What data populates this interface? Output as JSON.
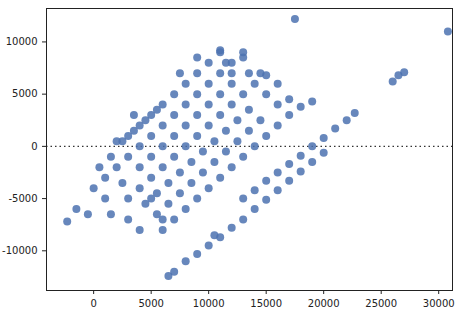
{
  "chart_data": {
    "type": "scatter",
    "color": "#4c72b0",
    "marker": "circle",
    "x": [
      2500,
      3000,
      3500,
      4000,
      4500,
      5000,
      5500,
      6000,
      7000,
      8000,
      9000,
      10000,
      11000,
      0,
      1000,
      2000,
      3000,
      4000,
      5000,
      6000,
      7000,
      8000,
      9000,
      10000,
      11000,
      12000,
      13000,
      -500,
      1000,
      2500,
      4000,
      5000,
      6000,
      7000,
      8000,
      9000,
      10000,
      11000,
      12000,
      13500,
      1500,
      3000,
      4000,
      5000,
      6000,
      7000,
      8000,
      9000,
      10000,
      11000,
      12000,
      13000,
      14000,
      3000,
      4500,
      5500,
      6500,
      7500,
      8500,
      9500,
      10500,
      11500,
      12500,
      13500,
      15000,
      16000,
      4000,
      5500,
      6500,
      7500,
      8500,
      9500,
      10500,
      11500,
      12500,
      13500,
      14500,
      16000,
      17000,
      6000,
      7000,
      8000,
      9000,
      10000,
      11000,
      12000,
      13000,
      14000,
      15000,
      16000,
      17000,
      18000,
      19000,
      13000,
      14000,
      15000,
      16000,
      17000,
      18000,
      19000,
      20000,
      21000,
      22000,
      22700,
      6500,
      7000,
      8000,
      9000,
      10000,
      11000,
      12000,
      13000,
      14000,
      15000,
      16000,
      17000,
      18000,
      19000,
      20000,
      -2300,
      -1500,
      500,
      1500,
      2000,
      3500,
      5000,
      6000,
      7500,
      9000,
      10500,
      11000,
      11500,
      12000,
      13000,
      14500,
      15000,
      17500,
      26000,
      26500,
      27000,
      30800
    ],
    "values": [
      500,
      1000,
      1500,
      2000,
      2500,
      3000,
      3500,
      4000,
      5000,
      6000,
      7000,
      8000,
      9000,
      -4000,
      -3000,
      -2000,
      -1000,
      0,
      1000,
      2000,
      3000,
      4000,
      5000,
      6000,
      7000,
      8000,
      8500,
      -6500,
      -5000,
      -3500,
      -2000,
      -1000,
      0,
      1000,
      2000,
      3000,
      4000,
      5000,
      6000,
      7000,
      -6500,
      -5000,
      -4000,
      -3000,
      -2000,
      -1000,
      0,
      1000,
      2000,
      3000,
      4000,
      5000,
      6000,
      -7000,
      -5500,
      -4500,
      -3500,
      -2500,
      -1500,
      -500,
      500,
      1500,
      2500,
      3500,
      5000,
      6000,
      -8000,
      -6500,
      -5500,
      -4500,
      -3500,
      -2500,
      -1500,
      -500,
      500,
      1500,
      2500,
      4000,
      4500,
      -8000,
      -7000,
      -6000,
      -5000,
      -4000,
      -3000,
      -2000,
      -1000,
      0,
      1000,
      2000,
      3000,
      3800,
      4300,
      -5000,
      -4200,
      -3300,
      -2500,
      -1700,
      -900,
      0,
      800,
      1700,
      2500,
      3200,
      -12400,
      -12000,
      -11000,
      -10300,
      -9500,
      -8700,
      -7800,
      -7000,
      -6000,
      -5100,
      -4200,
      -3300,
      -2400,
      -1500,
      -600,
      -7200,
      -6000,
      -2000,
      -1000,
      500,
      3000,
      -5000,
      -7000,
      7000,
      8500,
      -8500,
      9200,
      8000,
      7000,
      9000,
      7000,
      6800,
      12200,
      6200,
      6800,
      7100,
      11000
    ],
    "reference_y": 0,
    "xlim": [
      -4100,
      31200
    ],
    "ylim": [
      -13800,
      13200
    ],
    "xticks": [
      0,
      5000,
      10000,
      15000,
      20000,
      25000,
      30000
    ],
    "yticks": [
      -10000,
      -5000,
      0,
      5000,
      10000
    ],
    "grid": false
  }
}
